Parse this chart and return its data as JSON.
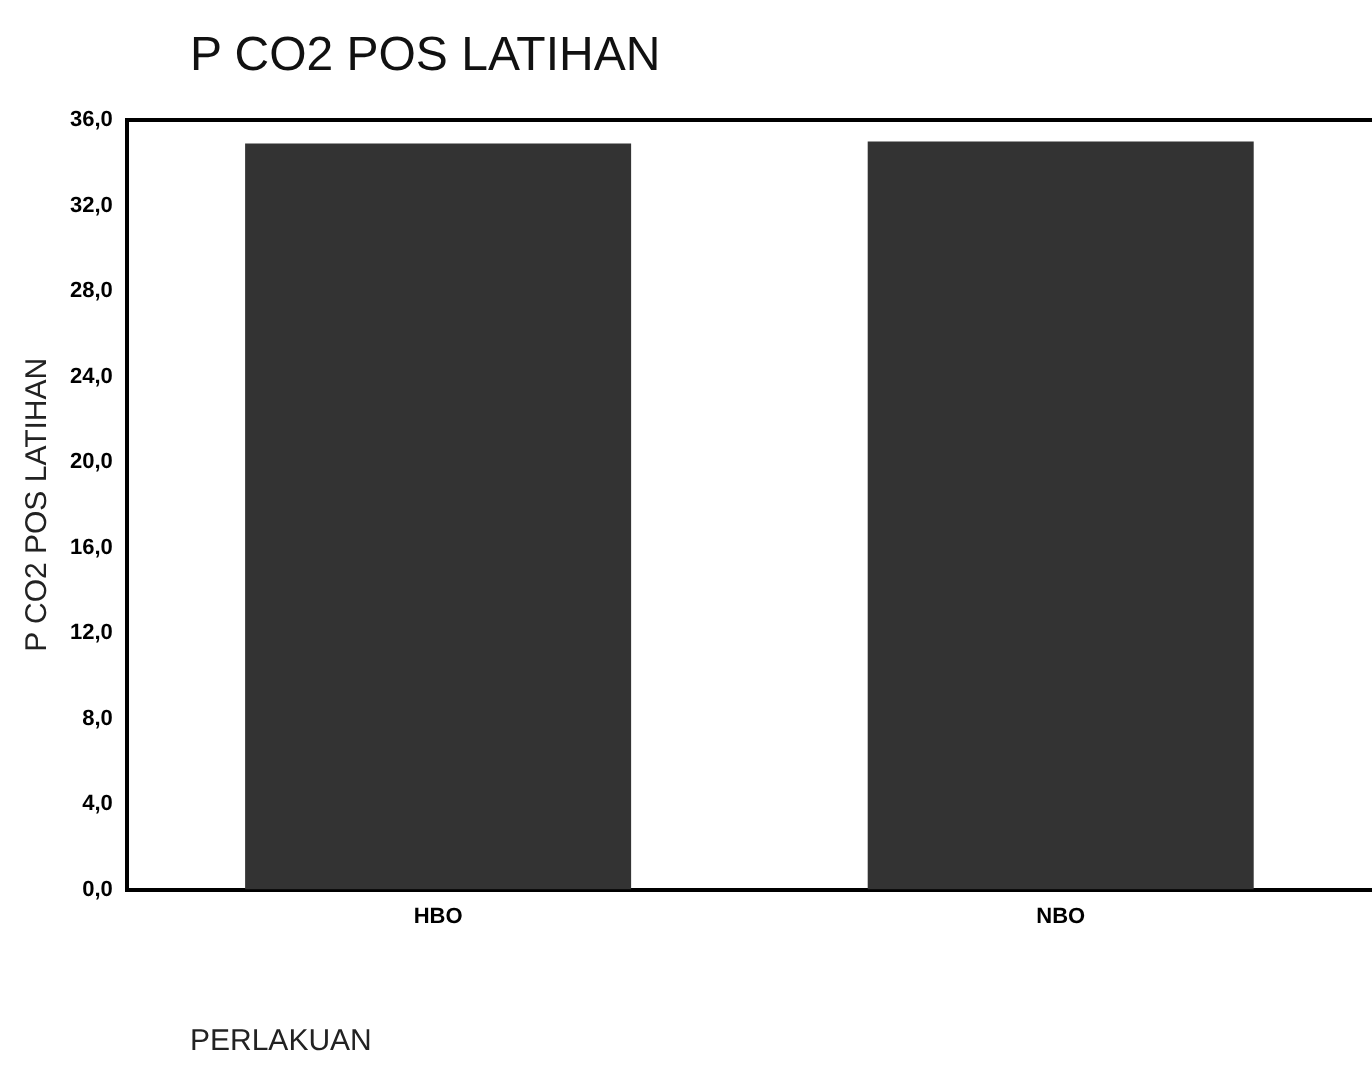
{
  "chart_data": {
    "type": "bar",
    "title": "P CO2 POS LATIHAN",
    "xlabel": "PERLAKUAN",
    "ylabel": "P CO2 POS LATIHAN",
    "categories": [
      "HBO",
      "NBO"
    ],
    "values": [
      34.9,
      35.0
    ],
    "color": "#333333",
    "ylim": [
      0,
      36
    ],
    "yticks": [
      {
        "value": 0,
        "label": "0,0"
      },
      {
        "value": 4,
        "label": "4,0"
      },
      {
        "value": 8,
        "label": "8,0"
      },
      {
        "value": 12,
        "label": "12,0"
      },
      {
        "value": 16,
        "label": "16,0"
      },
      {
        "value": 20,
        "label": "20,0"
      },
      {
        "value": 24,
        "label": "24,0"
      },
      {
        "value": 28,
        "label": "28,0"
      },
      {
        "value": 32,
        "label": "32,0"
      },
      {
        "value": 36,
        "label": "36,0"
      }
    ],
    "grid": false,
    "legend": false
  }
}
